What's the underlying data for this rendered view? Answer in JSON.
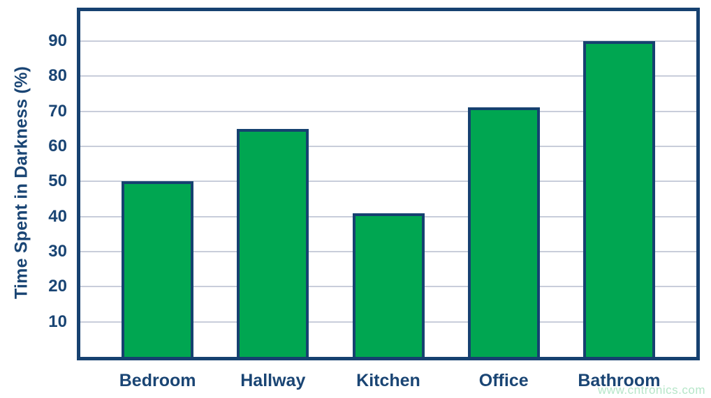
{
  "chart_data": {
    "type": "bar",
    "title": "",
    "categories": [
      "Bedroom",
      "Hallway",
      "Kitchen",
      "Office",
      "Bathroom"
    ],
    "values": [
      50,
      65,
      41,
      71,
      90
    ],
    "xlabel": "",
    "ylabel": "Time Spent in Darkness (%)",
    "yticks": [
      10,
      20,
      30,
      40,
      50,
      60,
      70,
      80,
      90
    ],
    "ylim": [
      0,
      98.5
    ],
    "grid": true,
    "legend": false,
    "bar_fill": "#00a651",
    "bar_border": "#164170",
    "axis_color": "#164170",
    "gridline_color": "#c8cdda",
    "label_color": "#1a4574",
    "background": "#ffffff"
  },
  "watermark": {
    "text": "www.cntronics.com",
    "color": "#b5e6c8"
  }
}
